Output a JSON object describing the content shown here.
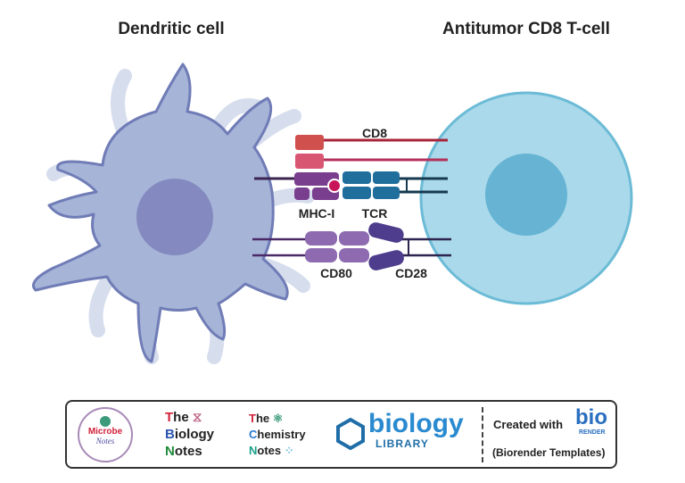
{
  "titles": {
    "left": "Dendritic cell",
    "right": "Antitumor CD8 T-cell"
  },
  "labels": {
    "cd8": "CD8",
    "mhc": "MHC-I",
    "tcr": "TCR",
    "cd80": "CD80",
    "cd28": "CD28"
  },
  "colors": {
    "dendritic_body": "#a6b4d8",
    "dendritic_outline": "#6f7cb6",
    "dendritic_nucleus": "#8489bf",
    "dendrite_faint": "#d6dded",
    "tcell_body": "#a9d9ea",
    "tcell_outline": "#6cbbd6",
    "tcell_nucleus": "#66b3d3",
    "cd8_a": "#d0504e",
    "cd8_b": "#d95673",
    "mhc": "#7a3e8f",
    "peptide": "#c8155a",
    "tcr": "#1f6e9c",
    "cd80": "#8e6bb0",
    "cd28": "#4e3d8c"
  },
  "footer": {
    "logos": [
      {
        "name": "Microbe Notes",
        "line1": "Microbe",
        "line2": "Notes"
      },
      {
        "name": "The Biology Notes",
        "lines": [
          "The",
          "Biology",
          "Notes"
        ]
      },
      {
        "name": "The Chemistry Notes",
        "lines": [
          "The",
          "Chemistry",
          "Notes"
        ]
      },
      {
        "name": "Biology Library",
        "line1": "biology",
        "line2": "LIBRARY"
      }
    ],
    "created_with": "Created with",
    "bio": "bio",
    "render": "RENDER",
    "templates": "(Biorender Templates)"
  }
}
